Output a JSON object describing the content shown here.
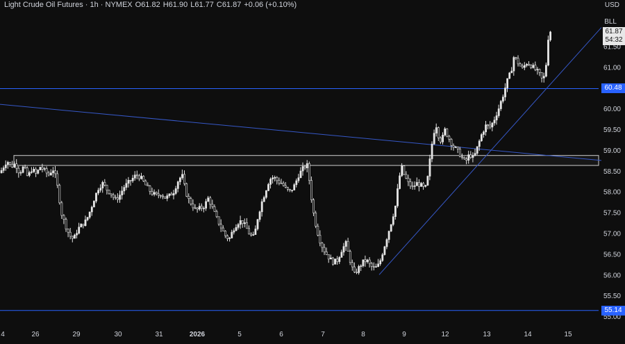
{
  "header": {
    "symbol": "Light Crude Oil Futures · 1h · NYMEX",
    "open_label": "O",
    "open": "61.82",
    "high_label": "H",
    "high": "61.90",
    "low_label": "L",
    "low": "61.77",
    "close_label": "C",
    "close": "61.87",
    "change": "+0.06 (+0.10%)"
  },
  "currency": "USD",
  "unit": "BLL",
  "last_price": {
    "price": "61.87",
    "countdown": "54:32"
  },
  "levels": [
    {
      "label": "60.48",
      "value": 60.48
    },
    {
      "label": "55.14",
      "value": 55.14
    }
  ],
  "colors": {
    "background": "#0e0e0e",
    "candle": "#e6e6e6",
    "level_line": "#2962ff",
    "trendline": "#3658c8",
    "zone": "#cfcfcf"
  },
  "chart_data": {
    "type": "candlestick",
    "title": "",
    "xlabel": "",
    "ylabel": "",
    "ylim": [
      55.0,
      62.25
    ],
    "y_ticks": [
      "61.50",
      "61.00",
      "60.50",
      "60.00",
      "59.50",
      "59.00",
      "58.50",
      "58.00",
      "57.50",
      "57.00",
      "56.50",
      "56.00",
      "55.50",
      "55.00"
    ],
    "x_ticks": [
      "4",
      "26",
      "29",
      "30",
      "31",
      "2026",
      "5",
      "6",
      "7",
      "8",
      "9",
      "12",
      "13",
      "14",
      "15"
    ],
    "x_ticks_bold": [
      "2026"
    ],
    "horizontal_levels": [
      60.48,
      55.14
    ],
    "zone": {
      "top": 58.87,
      "bottom": 58.63
    },
    "trendlines": [
      {
        "name": "",
        "from": {
          "x": "start",
          "y": 60.1
        },
        "to": {
          "x": "end",
          "y": 58.75
        }
      },
      {
        "name": "",
        "from": {
          "x": "8",
          "y": 56.0
        },
        "to": {
          "x": "end",
          "y": 61.95
        }
      }
    ],
    "price_path": [
      [
        0,
        58.45
      ],
      [
        5,
        58.6
      ],
      [
        10,
        58.75
      ],
      [
        16,
        58.6
      ],
      [
        22,
        58.68
      ],
      [
        28,
        58.45
      ],
      [
        34,
        58.6
      ],
      [
        40,
        58.35
      ],
      [
        46,
        58.55
      ],
      [
        52,
        58.42
      ],
      [
        58,
        58.6
      ],
      [
        64,
        58.5
      ],
      [
        70,
        58.4
      ],
      [
        76,
        58.55
      ],
      [
        80,
        58.35
      ],
      [
        84,
        58.0
      ],
      [
        88,
        57.5
      ],
      [
        94,
        57.2
      ],
      [
        100,
        56.95
      ],
      [
        106,
        56.85
      ],
      [
        112,
        57.1
      ],
      [
        118,
        57.2
      ],
      [
        124,
        57.3
      ],
      [
        130,
        57.55
      ],
      [
        136,
        57.85
      ],
      [
        142,
        58.1
      ],
      [
        148,
        58.2
      ],
      [
        154,
        58.05
      ],
      [
        160,
        57.95
      ],
      [
        166,
        57.8
      ],
      [
        172,
        57.9
      ],
      [
        178,
        58.1
      ],
      [
        184,
        58.2
      ],
      [
        190,
        58.3
      ],
      [
        196,
        58.4
      ],
      [
        202,
        58.35
      ],
      [
        208,
        58.2
      ],
      [
        214,
        58.05
      ],
      [
        220,
        57.95
      ],
      [
        226,
        57.9
      ],
      [
        232,
        57.95
      ],
      [
        238,
        57.85
      ],
      [
        244,
        57.9
      ],
      [
        250,
        58.0
      ],
      [
        256,
        58.25
      ],
      [
        262,
        58.4
      ],
      [
        266,
        58.1
      ],
      [
        270,
        57.85
      ],
      [
        276,
        57.7
      ],
      [
        282,
        57.55
      ],
      [
        288,
        57.6
      ],
      [
        294,
        57.65
      ],
      [
        300,
        57.85
      ],
      [
        306,
        57.6
      ],
      [
        312,
        57.35
      ],
      [
        318,
        57.15
      ],
      [
        324,
        56.95
      ],
      [
        330,
        56.85
      ],
      [
        336,
        57.1
      ],
      [
        342,
        57.25
      ],
      [
        348,
        57.3
      ],
      [
        354,
        57.15
      ],
      [
        360,
        56.95
      ],
      [
        366,
        56.9
      ],
      [
        370,
        57.3
      ],
      [
        376,
        57.7
      ],
      [
        382,
        58.0
      ],
      [
        388,
        58.3
      ],
      [
        394,
        58.35
      ],
      [
        400,
        58.25
      ],
      [
        406,
        58.2
      ],
      [
        412,
        58.05
      ],
      [
        418,
        58.0
      ],
      [
        424,
        58.15
      ],
      [
        430,
        58.4
      ],
      [
        436,
        58.55
      ],
      [
        442,
        58.65
      ],
      [
        446,
        58.2
      ],
      [
        450,
        57.6
      ],
      [
        456,
        57.1
      ],
      [
        462,
        56.75
      ],
      [
        468,
        56.55
      ],
      [
        474,
        56.4
      ],
      [
        480,
        56.3
      ],
      [
        486,
        56.35
      ],
      [
        492,
        56.6
      ],
      [
        498,
        56.75
      ],
      [
        504,
        56.35
      ],
      [
        510,
        56.0
      ],
      [
        516,
        56.15
      ],
      [
        522,
        56.3
      ],
      [
        528,
        56.35
      ],
      [
        534,
        56.2
      ],
      [
        540,
        56.15
      ],
      [
        546,
        56.25
      ],
      [
        552,
        56.6
      ],
      [
        558,
        56.95
      ],
      [
        564,
        57.3
      ],
      [
        570,
        57.7
      ],
      [
        574,
        58.25
      ],
      [
        578,
        58.6
      ],
      [
        582,
        58.4
      ],
      [
        588,
        58.2
      ],
      [
        594,
        58.1
      ],
      [
        600,
        58.2
      ],
      [
        606,
        58.15
      ],
      [
        612,
        58.05
      ],
      [
        616,
        58.35
      ],
      [
        620,
        58.9
      ],
      [
        624,
        59.4
      ],
      [
        628,
        59.6
      ],
      [
        632,
        59.3
      ],
      [
        636,
        59.2
      ],
      [
        640,
        59.5
      ],
      [
        646,
        59.3
      ],
      [
        652,
        59.1
      ],
      [
        658,
        59.0
      ],
      [
        664,
        58.85
      ],
      [
        670,
        58.7
      ],
      [
        676,
        58.9
      ],
      [
        682,
        58.8
      ],
      [
        688,
        59.1
      ],
      [
        694,
        59.4
      ],
      [
        700,
        59.6
      ],
      [
        706,
        59.55
      ],
      [
        712,
        59.75
      ],
      [
        718,
        60.0
      ],
      [
        724,
        60.3
      ],
      [
        730,
        60.65
      ],
      [
        736,
        60.9
      ],
      [
        740,
        61.25
      ],
      [
        746,
        61.1
      ],
      [
        752,
        60.95
      ],
      [
        758,
        61.1
      ],
      [
        764,
        61.05
      ],
      [
        770,
        60.95
      ],
      [
        776,
        60.85
      ],
      [
        782,
        60.65
      ],
      [
        786,
        61.0
      ],
      [
        790,
        61.82
      ],
      [
        793,
        61.87
      ]
    ]
  }
}
